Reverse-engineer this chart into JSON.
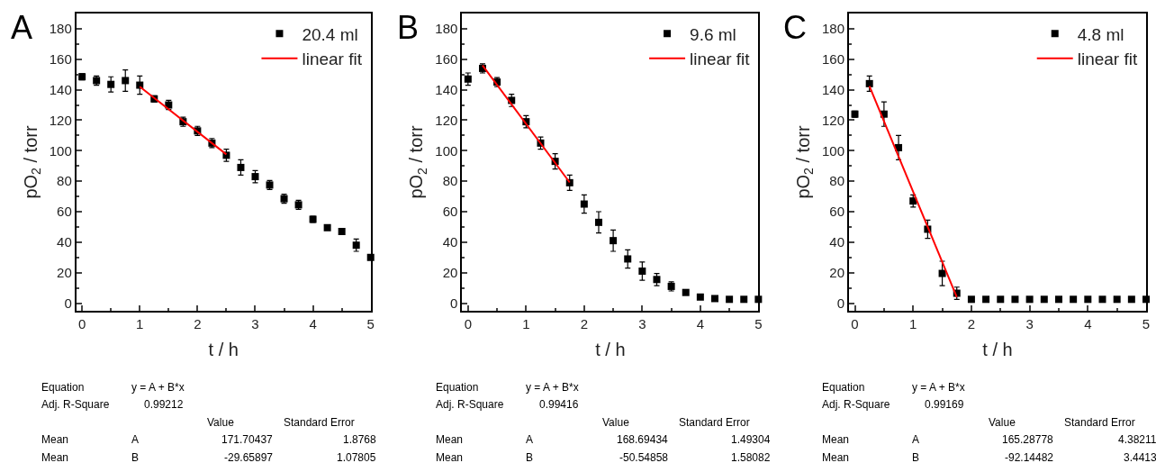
{
  "chart_data": [
    {
      "type": "scatter",
      "title": "A",
      "xlabel": "t / h",
      "ylabel": "pO$_{2}$ / torr",
      "xlim": [
        -0.1,
        5
      ],
      "xticks": [
        0,
        1,
        2,
        3,
        4,
        5
      ],
      "ylim": [
        -5,
        190
      ],
      "yticks": [
        0,
        20,
        40,
        60,
        80,
        100,
        120,
        140,
        160,
        180
      ],
      "legend": "top right",
      "series": [
        {
          "name": "20.4 ml",
          "marker": "square",
          "color": "#000000",
          "x": [
            0,
            0.25,
            0.5,
            0.75,
            1,
            1.25,
            1.5,
            1.75,
            2,
            2.25,
            2.5,
            2.75,
            3,
            3.25,
            3.5,
            3.75,
            4,
            4.25,
            4.5,
            4.75,
            5
          ],
          "values": [
            148.5,
            146,
            143.5,
            146,
            143,
            134,
            130,
            119,
            113,
            105,
            97,
            89,
            83,
            77.5,
            68.5,
            64.5,
            55,
            49.5,
            47,
            38,
            30
          ],
          "errors": [
            2,
            3,
            5,
            7,
            6,
            2,
            3,
            3,
            3,
            3,
            4,
            5,
            4,
            3,
            3,
            3,
            2,
            1,
            1,
            4,
            1
          ]
        },
        {
          "name": "linear fit",
          "type": "line",
          "color": "#ff0000",
          "x": [
            1,
            2.5
          ],
          "values": [
            142,
            97.6
          ]
        }
      ],
      "annotations": [
        "Equation",
        "y = A + B*x",
        "Adj. R-Square",
        "0.99212",
        "Value",
        "Standard Error",
        "Mean",
        "A",
        "171.70437",
        "1.8768",
        "Mean",
        "B",
        "-29.65897",
        "1.07805"
      ]
    },
    {
      "type": "scatter",
      "title": "B",
      "xlabel": "t / h",
      "ylabel": "pO$_{2}$ / torr",
      "xlim": [
        -0.1,
        5
      ],
      "xticks": [
        0,
        1,
        2,
        3,
        4,
        5
      ],
      "ylim": [
        -5,
        190
      ],
      "yticks": [
        0,
        20,
        40,
        60,
        80,
        100,
        120,
        140,
        160,
        180
      ],
      "legend": "top right",
      "series": [
        {
          "name": "9.6 ml",
          "marker": "square",
          "color": "#000000",
          "x": [
            0,
            0.25,
            0.5,
            0.75,
            1,
            1.25,
            1.5,
            1.75,
            2,
            2.25,
            2.5,
            2.75,
            3,
            3.25,
            3.5,
            3.75,
            4,
            4.25,
            4.5,
            4.75,
            5
          ],
          "values": [
            147,
            154,
            145,
            133,
            119,
            105,
            93,
            79,
            65,
            53,
            41,
            29,
            21,
            15.5,
            11,
            7,
            4,
            3,
            2.5,
            2.5,
            2.5
          ],
          "errors": [
            4,
            3,
            3,
            4,
            4,
            4,
            5,
            5,
            6,
            7,
            7,
            6,
            6,
            4,
            3,
            1,
            1,
            1,
            1,
            1,
            1
          ]
        },
        {
          "name": "linear fit",
          "type": "line",
          "color": "#ff0000",
          "x": [
            0.25,
            1.75
          ],
          "values": [
            156,
            79.2
          ]
        }
      ],
      "annotations": [
        "Equation",
        "y = A + B*x",
        "Adj. R-Square",
        "0.99416",
        "Value",
        "Standard Error",
        "Mean",
        "A",
        "168.69434",
        "1.49304",
        "Mean",
        "B",
        "-50.54858",
        "1.58082"
      ]
    },
    {
      "type": "scatter",
      "title": "C",
      "xlabel": "t / h",
      "ylabel": "pO$_{2}$ / torr",
      "xlim": [
        -0.1,
        5
      ],
      "xticks": [
        0,
        1,
        2,
        3,
        4,
        5
      ],
      "ylim": [
        -5,
        190
      ],
      "yticks": [
        0,
        20,
        40,
        60,
        80,
        100,
        120,
        140,
        160,
        180
      ],
      "legend": "top right",
      "series": [
        {
          "name": "4.8 ml",
          "marker": "square",
          "color": "#000000",
          "x": [
            0,
            0.25,
            0.5,
            0.75,
            1,
            1.25,
            1.5,
            1.75,
            2,
            2.25,
            2.5,
            2.75,
            3,
            3.25,
            3.5,
            3.75,
            4,
            4.25,
            4.5,
            4.75,
            5
          ],
          "values": [
            124,
            144,
            124,
            102,
            67,
            48.5,
            19.5,
            6.5,
            2.5,
            2.5,
            2.5,
            2.5,
            2.5,
            2.5,
            2.5,
            2.5,
            2.5,
            2.5,
            2.5,
            2.5,
            2.5
          ],
          "errors": [
            2,
            5,
            8,
            8,
            4,
            6,
            8,
            4,
            1,
            1,
            1,
            1,
            1,
            1,
            1,
            1,
            1,
            1,
            1,
            1,
            1
          ]
        },
        {
          "name": "linear fit",
          "type": "line",
          "color": "#ff0000",
          "x": [
            0.25,
            1.75
          ],
          "values": [
            142.3,
            4
          ]
        }
      ],
      "annotations": [
        "Equation",
        "y = A + B*x",
        "Adj. R-Square",
        "0.99169",
        "Value",
        "Standard Error",
        "Mean",
        "A",
        "165.28778",
        "4.38211",
        "Mean",
        "B",
        "-92.14482",
        "3.4413"
      ]
    }
  ]
}
